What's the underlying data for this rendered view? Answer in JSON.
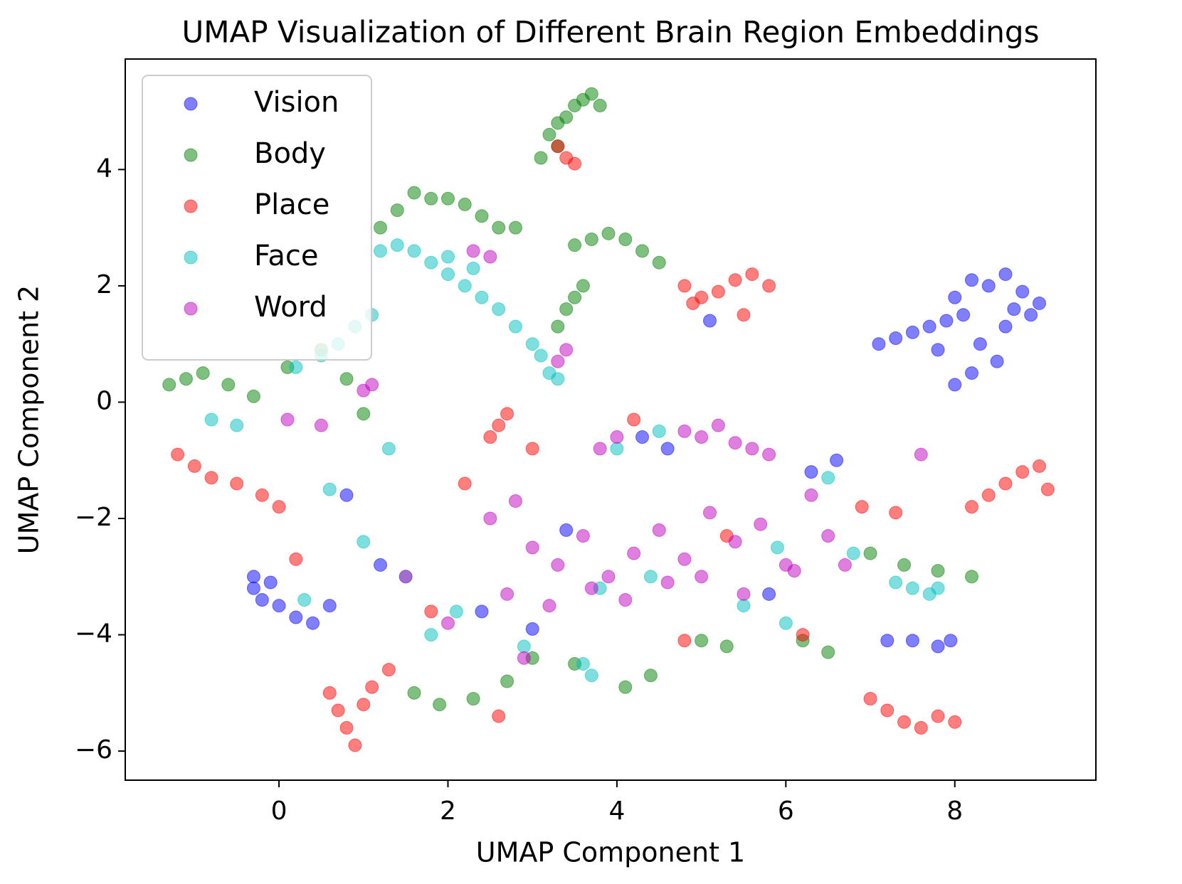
{
  "chart_data": {
    "type": "scatter",
    "title": "UMAP Visualization of Different Brain Region Embeddings",
    "x_label": "UMAP Component 1",
    "y_label": "UMAP Component 2",
    "xlim": [
      -1.82,
      9.67
    ],
    "ylim": [
      -6.5,
      5.9
    ],
    "xticks": [
      0,
      2,
      4,
      6,
      8
    ],
    "yticks": [
      {
        "value": -6,
        "label": "−6"
      },
      {
        "value": -4,
        "label": "−4"
      },
      {
        "value": -2,
        "label": "−2"
      },
      0,
      2,
      4
    ],
    "legend": "upper left",
    "alpha": 0.5,
    "series": [
      {
        "name": "Vision",
        "color": "#0000ff",
        "x": [
          7.1,
          7.3,
          7.5,
          7.7,
          7.9,
          8.0,
          8.2,
          8.4,
          8.6,
          8.8,
          9.0,
          8.9,
          8.6,
          8.3,
          8.5,
          8.2,
          8.0,
          7.8,
          8.1,
          8.7,
          -0.3,
          -0.2,
          -0.1,
          0.0,
          0.2,
          0.4,
          0.6,
          -0.3,
          7.2,
          7.5,
          7.8,
          7.95,
          4.3,
          4.6,
          5.1,
          1.2,
          2.4,
          3.4,
          6.3,
          6.6,
          0.8,
          5.8,
          3.0
        ],
        "y": [
          1.0,
          1.1,
          1.2,
          1.3,
          1.4,
          1.8,
          2.1,
          2.0,
          2.2,
          1.9,
          1.7,
          1.5,
          1.3,
          1.0,
          0.7,
          0.5,
          0.3,
          0.9,
          1.5,
          1.6,
          -3.2,
          -3.4,
          -3.1,
          -3.5,
          -3.7,
          -3.8,
          -3.5,
          -3.0,
          -4.1,
          -4.1,
          -4.2,
          -4.1,
          -0.6,
          -0.8,
          1.4,
          -2.8,
          -3.6,
          -2.2,
          -1.2,
          -1.0,
          -1.6,
          -3.3,
          -3.9
        ]
      },
      {
        "name": "Body",
        "color": "#008000",
        "x": [
          3.1,
          3.2,
          3.3,
          3.4,
          3.5,
          3.6,
          3.7,
          3.8,
          3.3,
          1.2,
          1.4,
          1.6,
          1.8,
          2.0,
          2.2,
          2.4,
          2.6,
          2.8,
          3.5,
          3.7,
          3.9,
          4.1,
          4.3,
          4.5,
          3.3,
          3.4,
          3.5,
          3.6,
          -1.3,
          -1.1,
          -0.9,
          -0.6,
          -0.3,
          0.1,
          0.5,
          1.6,
          1.9,
          2.3,
          2.7,
          3.5,
          4.1,
          4.4,
          5.0,
          5.3,
          7.0,
          7.4,
          7.8,
          8.2,
          6.2,
          6.5,
          1.0,
          0.8,
          3.0
        ],
        "y": [
          4.2,
          4.6,
          4.8,
          4.9,
          5.1,
          5.2,
          5.3,
          5.1,
          4.4,
          3.0,
          3.3,
          3.6,
          3.5,
          3.5,
          3.4,
          3.2,
          3.0,
          3.0,
          2.7,
          2.8,
          2.9,
          2.8,
          2.6,
          2.4,
          1.3,
          1.6,
          1.8,
          2.0,
          0.3,
          0.4,
          0.5,
          0.3,
          0.1,
          0.6,
          0.9,
          -5.0,
          -5.2,
          -5.1,
          -4.8,
          -4.5,
          -4.9,
          -4.7,
          -4.1,
          -4.2,
          -2.6,
          -2.8,
          -2.9,
          -3.0,
          -4.1,
          -4.3,
          -0.2,
          0.4,
          -4.4
        ]
      },
      {
        "name": "Place",
        "color": "#ff0000",
        "x": [
          3.3,
          3.4,
          3.5,
          4.8,
          5.0,
          5.2,
          5.4,
          5.6,
          5.8,
          5.5,
          4.9,
          8.2,
          8.4,
          8.6,
          8.8,
          9.0,
          9.1,
          0.6,
          0.7,
          0.8,
          0.9,
          1.0,
          1.1,
          1.3,
          7.0,
          7.2,
          7.4,
          7.6,
          7.8,
          8.0,
          -1.2,
          -1.0,
          -0.8,
          -0.5,
          -0.2,
          0.0,
          2.5,
          2.6,
          2.7,
          2.2,
          3.0,
          4.2,
          6.9,
          7.3,
          1.8,
          2.6,
          6.2,
          0.2,
          4.8,
          5.3
        ],
        "y": [
          4.4,
          4.2,
          4.1,
          2.0,
          1.8,
          1.9,
          2.1,
          2.2,
          2.0,
          1.5,
          1.7,
          -1.8,
          -1.6,
          -1.4,
          -1.2,
          -1.1,
          -1.5,
          -5.0,
          -5.3,
          -5.6,
          -5.9,
          -5.2,
          -4.9,
          -4.6,
          -5.1,
          -5.3,
          -5.5,
          -5.6,
          -5.4,
          -5.5,
          -0.9,
          -1.1,
          -1.3,
          -1.4,
          -1.6,
          -1.8,
          -0.6,
          -0.4,
          -0.2,
          -1.4,
          -0.8,
          -0.3,
          -1.8,
          -1.9,
          -3.6,
          -5.4,
          -4.0,
          -2.7,
          -4.1,
          -2.3
        ]
      },
      {
        "name": "Face",
        "color": "#00bfbf",
        "x": [
          1.2,
          1.4,
          1.6,
          1.8,
          2.0,
          2.2,
          2.4,
          2.6,
          2.8,
          2.0,
          2.3,
          3.0,
          3.1,
          3.2,
          3.3,
          0.5,
          0.7,
          0.9,
          1.1,
          0.2,
          -0.5,
          -0.8,
          0.6,
          1.0,
          1.5,
          2.1,
          2.9,
          3.6,
          3.8,
          4.0,
          4.5,
          5.5,
          6.0,
          6.5,
          6.8,
          7.3,
          7.5,
          7.7,
          7.8,
          1.8,
          3.7,
          4.4,
          5.9,
          0.3,
          1.3
        ],
        "y": [
          2.6,
          2.7,
          2.6,
          2.4,
          2.2,
          2.0,
          1.8,
          1.6,
          1.3,
          2.5,
          2.3,
          1.0,
          0.8,
          0.5,
          0.4,
          0.8,
          1.0,
          1.3,
          1.5,
          0.6,
          -0.4,
          -0.3,
          -1.5,
          -2.4,
          -3.0,
          -3.6,
          -4.2,
          -4.5,
          -3.2,
          -0.8,
          -0.5,
          -3.5,
          -3.8,
          -1.3,
          -2.6,
          -3.1,
          -3.2,
          -3.3,
          -3.2,
          -4.0,
          -4.7,
          -3.0,
          -2.5,
          -3.4,
          -0.8
        ]
      },
      {
        "name": "Word",
        "color": "#bf00bf",
        "x": [
          2.5,
          2.8,
          3.0,
          3.3,
          3.6,
          3.9,
          4.2,
          4.5,
          4.8,
          5.1,
          5.4,
          5.7,
          6.0,
          6.3,
          6.5,
          2.7,
          3.2,
          3.7,
          4.1,
          4.6,
          5.0,
          5.5,
          6.1,
          4.8,
          5.0,
          5.2,
          5.4,
          5.6,
          5.8,
          1.0,
          1.1,
          2.3,
          2.5,
          3.3,
          3.4,
          3.8,
          4.0,
          0.5,
          0.1,
          1.5,
          2.0,
          6.7,
          7.6,
          2.9
        ],
        "y": [
          -2.0,
          -1.7,
          -2.5,
          -2.8,
          -2.3,
          -3.0,
          -2.6,
          -2.2,
          -2.7,
          -1.9,
          -2.4,
          -2.1,
          -2.8,
          -1.6,
          -2.3,
          -3.3,
          -3.5,
          -3.2,
          -3.4,
          -3.1,
          -3.0,
          -3.3,
          -2.9,
          -0.5,
          -0.6,
          -0.4,
          -0.7,
          -0.8,
          -0.9,
          0.2,
          0.3,
          2.6,
          2.5,
          0.7,
          0.9,
          -0.8,
          -0.6,
          -0.4,
          -0.3,
          -3.0,
          -3.8,
          -2.8,
          -0.9,
          -4.4
        ]
      }
    ]
  }
}
